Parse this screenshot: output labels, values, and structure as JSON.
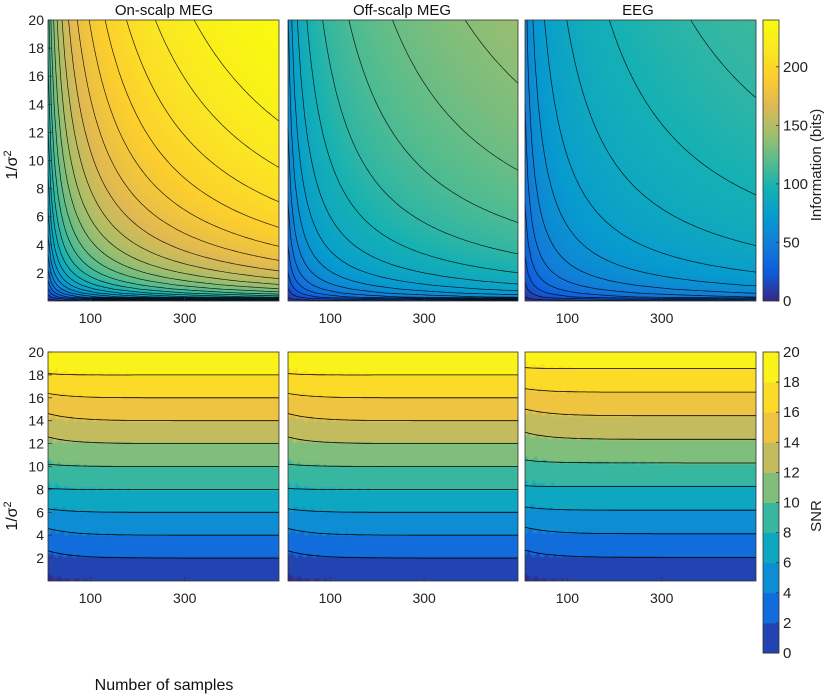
{
  "chart_data": [
    {
      "type": "contour",
      "row": "top",
      "panels": [
        "On-scalp MEG",
        "Off-scalp MEG",
        "EEG"
      ],
      "ylabel": "1/σ²",
      "x_ticks": [
        100,
        300
      ],
      "x_range": [
        10,
        500
      ],
      "y_ticks": [
        2,
        4,
        6,
        8,
        10,
        12,
        14,
        16,
        18,
        20
      ],
      "y_range": [
        0,
        20
      ],
      "colorbar": {
        "label": "Information (bits)",
        "ticks": [
          0,
          50,
          100,
          150,
          200
        ],
        "range": [
          0,
          240
        ]
      },
      "max_information_bits": {
        "On-scalp MEG": 240,
        "Off-scalp MEG": 140,
        "EEG": 110
      },
      "contour_levels": [
        5,
        15,
        25,
        35,
        45,
        55,
        65,
        75,
        85,
        95,
        105,
        115,
        125,
        135,
        145,
        155,
        165,
        175,
        185,
        195,
        205,
        215,
        225
      ]
    },
    {
      "type": "contour",
      "row": "bottom",
      "panels": [
        "On-scalp MEG",
        "Off-scalp MEG",
        "EEG"
      ],
      "xlabel": "Number of samples",
      "ylabel": "1/σ²",
      "x_ticks": [
        100,
        300
      ],
      "x_range": [
        10,
        500
      ],
      "y_ticks": [
        2,
        4,
        6,
        8,
        10,
        12,
        14,
        16,
        18,
        20
      ],
      "y_range": [
        0,
        20
      ],
      "colorbar": {
        "label": "SNR",
        "ticks": [
          0,
          2,
          4,
          6,
          8,
          10,
          12,
          14,
          16,
          18,
          20
        ],
        "range": [
          0,
          20
        ]
      },
      "snr_per_unit_y": {
        "On-scalp MEG": 1.0,
        "Off-scalp MEG": 1.0,
        "EEG": 0.97
      }
    }
  ],
  "labels": {
    "top_titles": [
      "On-scalp MEG",
      "Off-scalp MEG",
      "EEG"
    ],
    "ylabel_base": "1/σ",
    "ylabel_sup": "2",
    "xlabel": "Number of samples",
    "cbar_top_label": "Information (bits)",
    "cbar_bottom_label": "SNR"
  }
}
